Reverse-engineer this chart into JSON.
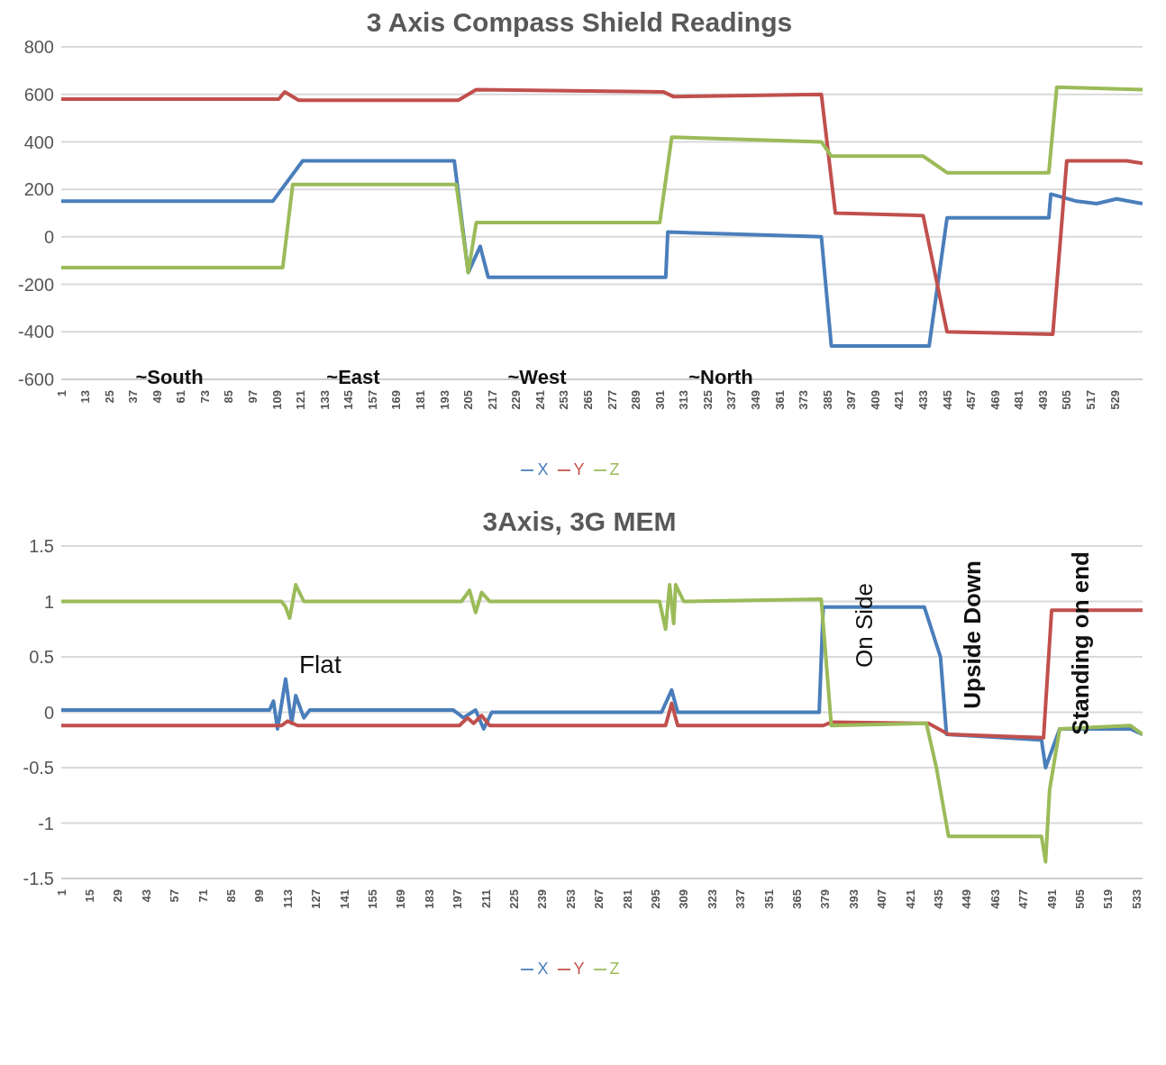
{
  "chart_data": [
    {
      "type": "line",
      "title": "3 Axis Compass Shield Readings",
      "xlim": [
        1,
        543
      ],
      "xticks": [
        1,
        13,
        25,
        37,
        49,
        61,
        73,
        85,
        97,
        109,
        121,
        133,
        145,
        157,
        169,
        181,
        193,
        205,
        217,
        229,
        241,
        253,
        265,
        277,
        289,
        301,
        313,
        325,
        337,
        349,
        361,
        373,
        385,
        397,
        409,
        421,
        433,
        445,
        457,
        469,
        481,
        493,
        505,
        517,
        529
      ],
      "ylim": [
        -600,
        800
      ],
      "yticks": [
        -600,
        -400,
        -200,
        0,
        200,
        400,
        600,
        800
      ],
      "grid": "y",
      "legend": "bottom",
      "marker": "none",
      "line_style": "solid",
      "annotations": [
        "~South",
        "~East",
        "~West",
        "~North"
      ],
      "series": [
        {
          "name": "X",
          "color": "#4a7ebb",
          "x": [
            1,
            107,
            122,
            198,
            205,
            211,
            215,
            304,
            305,
            382,
            387,
            436,
            445,
            496,
            497,
            510,
            520,
            530,
            543
          ],
          "values": [
            150,
            150,
            320,
            320,
            -150,
            -40,
            -170,
            -170,
            20,
            0,
            -460,
            -460,
            80,
            80,
            180,
            150,
            140,
            160,
            140
          ]
        },
        {
          "name": "Y",
          "color": "#c0504d",
          "x": [
            1,
            110,
            113,
            120,
            200,
            209,
            303,
            308,
            382,
            389,
            433,
            445,
            498,
            505,
            535,
            543
          ],
          "values": [
            580,
            580,
            610,
            575,
            575,
            620,
            610,
            590,
            600,
            100,
            90,
            -400,
            -410,
            320,
            320,
            310
          ]
        },
        {
          "name": "Z",
          "color": "#9bbb59",
          "x": [
            1,
            112,
            117,
            199,
            205,
            209,
            301,
            307,
            382,
            387,
            433,
            445,
            496,
            500,
            543
          ],
          "values": [
            -130,
            -130,
            220,
            220,
            -150,
            60,
            60,
            420,
            400,
            340,
            340,
            270,
            270,
            630,
            620
          ]
        }
      ]
    },
    {
      "type": "line",
      "title": "3Axis, 3G MEM",
      "xlim": [
        1,
        536
      ],
      "xticks": [
        1,
        15,
        29,
        43,
        57,
        71,
        85,
        99,
        113,
        127,
        141,
        155,
        169,
        183,
        197,
        211,
        225,
        239,
        253,
        267,
        281,
        295,
        309,
        323,
        337,
        351,
        365,
        379,
        393,
        407,
        421,
        435,
        449,
        463,
        477,
        491,
        505,
        519,
        533
      ],
      "ylim": [
        -1.5,
        1.5
      ],
      "yticks": [
        -1.5,
        -1,
        -0.5,
        0,
        0.5,
        1,
        1.5
      ],
      "grid": "y",
      "legend": "bottom",
      "marker": "none",
      "line_style": "solid",
      "annotations": [
        "Flat",
        "On Side",
        "Upside Down",
        "Standing on end"
      ],
      "series": [
        {
          "name": "X",
          "color": "#4a7ebb",
          "x": [
            1,
            104,
            106,
            108,
            112,
            115,
            117,
            121,
            124,
            195,
            200,
            206,
            210,
            214,
            298,
            303,
            306,
            376,
            378,
            428,
            436,
            439,
            486,
            488,
            495,
            530,
            536
          ],
          "values": [
            0.02,
            0.02,
            0.1,
            -0.15,
            0.3,
            -0.1,
            0.15,
            -0.05,
            0.02,
            0.02,
            -0.05,
            0.02,
            -0.15,
            0,
            0,
            0.2,
            0,
            0,
            0.95,
            0.95,
            0.5,
            -0.2,
            -0.25,
            -0.5,
            -0.15,
            -0.15,
            -0.2
          ]
        },
        {
          "name": "Y",
          "color": "#c0504d",
          "x": [
            1,
            110,
            113,
            118,
            198,
            202,
            205,
            209,
            213,
            300,
            303,
            306,
            378,
            382,
            430,
            440,
            487,
            491,
            536
          ],
          "values": [
            -0.12,
            -0.12,
            -0.08,
            -0.12,
            -0.12,
            -0.05,
            -0.1,
            -0.03,
            -0.12,
            -0.12,
            0.08,
            -0.12,
            -0.12,
            -0.09,
            -0.1,
            -0.2,
            -0.23,
            0.92,
            0.92
          ]
        },
        {
          "name": "Z",
          "color": "#9bbb59",
          "x": [
            1,
            110,
            112,
            114,
            117,
            121,
            199,
            203,
            206,
            209,
            213,
            297,
            300,
            302,
            304,
            305,
            309,
            377,
            382,
            429,
            434,
            440,
            486,
            488,
            490,
            495,
            530,
            536
          ],
          "values": [
            1,
            1,
            0.95,
            0.85,
            1.15,
            1,
            1,
            1.1,
            0.9,
            1.08,
            1,
            1,
            0.75,
            1.15,
            0.8,
            1.15,
            1,
            1.02,
            -0.12,
            -0.1,
            -0.5,
            -1.12,
            -1.12,
            -1.35,
            -0.7,
            -0.15,
            -0.12,
            -0.2
          ]
        }
      ]
    }
  ]
}
